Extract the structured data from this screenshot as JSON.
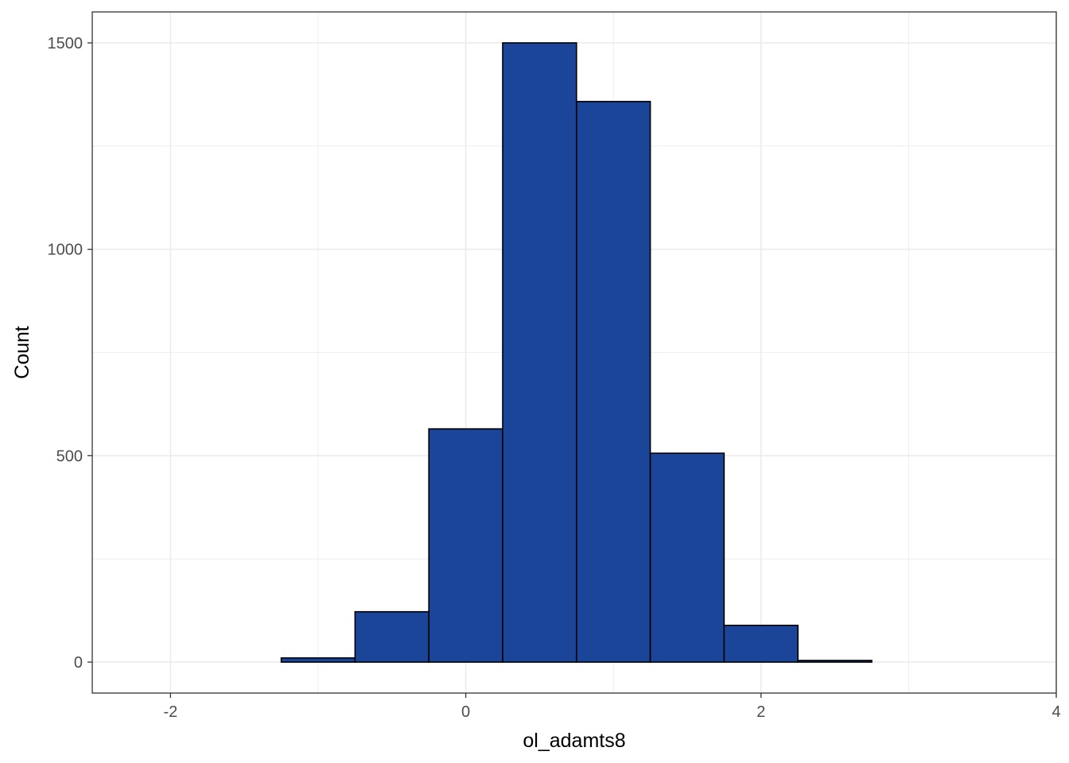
{
  "chart_data": {
    "type": "bar",
    "title": "",
    "xlabel": "ol_adamts8",
    "ylabel": "Count",
    "bin_width": 0.5,
    "bins": [
      {
        "x_min": -2.25,
        "x_max": -1.75,
        "count": 0
      },
      {
        "x_min": -1.75,
        "x_max": -1.25,
        "count": 0
      },
      {
        "x_min": -1.25,
        "x_max": -0.75,
        "count": 10
      },
      {
        "x_min": -0.75,
        "x_max": -0.25,
        "count": 122
      },
      {
        "x_min": -0.25,
        "x_max": 0.25,
        "count": 565
      },
      {
        "x_min": 0.25,
        "x_max": 0.75,
        "count": 1500
      },
      {
        "x_min": 0.75,
        "x_max": 1.25,
        "count": 1358
      },
      {
        "x_min": 1.25,
        "x_max": 1.75,
        "count": 506
      },
      {
        "x_min": 1.75,
        "x_max": 2.25,
        "count": 89
      },
      {
        "x_min": 2.25,
        "x_max": 2.75,
        "count": 4
      },
      {
        "x_min": 2.75,
        "x_max": 3.25,
        "count": 0
      },
      {
        "x_min": 3.25,
        "x_max": 3.75,
        "count": 0
      }
    ],
    "xlim": [
      -2.53,
      4.0
    ],
    "ylim": [
      -75,
      1575
    ],
    "x_ticks": [
      -2,
      0,
      2,
      4
    ],
    "x_tick_labels": [
      "-2",
      "0",
      "2",
      "4"
    ],
    "y_ticks": [
      0,
      500,
      1000,
      1500
    ],
    "y_tick_labels": [
      "0",
      "500",
      "1000",
      "1500"
    ],
    "grid": true,
    "fill_color": "#1a4599",
    "edge_color": "#000000",
    "grid_color": "#ebebeb"
  }
}
